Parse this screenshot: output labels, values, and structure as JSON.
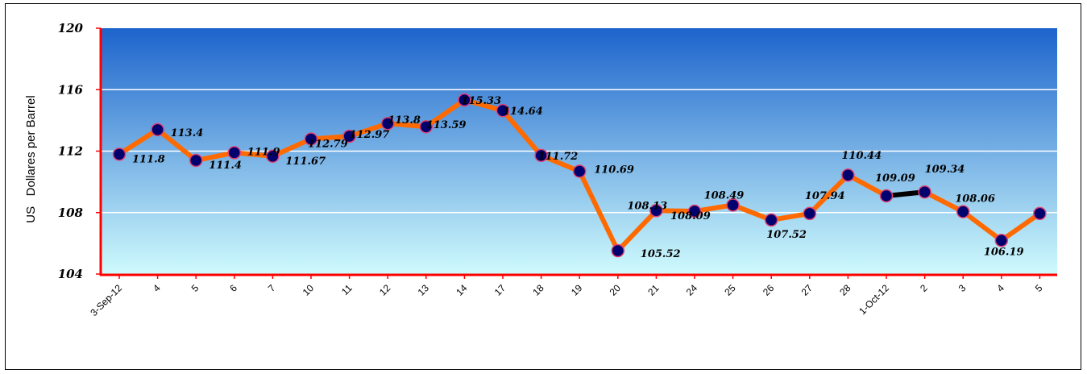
{
  "chart_data": {
    "type": "line",
    "title": "",
    "xlabel": "",
    "ylabel": "US   Dollares per Barrel",
    "ylim": [
      104,
      120
    ],
    "yticks": [
      104,
      108,
      112,
      116,
      120
    ],
    "grid": "horizontal",
    "categories": [
      "3-Sep-12",
      "4",
      "5",
      "6",
      "7",
      "10",
      "11",
      "12",
      "13",
      "14",
      "17",
      "18",
      "19",
      "20",
      "21",
      "24",
      "25",
      "26",
      "27",
      "28",
      "1-Oct-12",
      "2",
      "3",
      "4",
      "5"
    ],
    "series": [
      {
        "values": [
          111.8,
          113.4,
          111.4,
          111.9,
          111.67,
          112.79,
          112.97,
          113.8,
          113.59,
          115.33,
          114.64,
          111.72,
          110.69,
          105.52,
          108.13,
          108.09,
          108.49,
          107.52,
          107.94,
          110.44,
          109.09,
          109.34,
          108.06,
          106.19,
          107.94
        ]
      }
    ],
    "data_labels": [
      "111.8",
      "113.4",
      "111.4",
      "111.9",
      "111.67",
      "112.79",
      "112.97",
      "113.8",
      "113.59",
      "115.33",
      "114.64",
      "111.72",
      "110.69",
      "105.52",
      "108.13",
      "108.09",
      "108.49",
      "107.52",
      "107.94",
      "110.44",
      "109.09",
      "109.34",
      "108.06",
      "106.19",
      ""
    ],
    "colors": {
      "line": "#ff6a00",
      "highlight_segment": "#000000",
      "marker_fill": "#00006e",
      "marker_stroke": "#e04070",
      "axis": "#ff0000",
      "plot_top": "#1c64cc",
      "plot_bottom": "#cffbfd",
      "gridline": "#ffffff"
    }
  }
}
